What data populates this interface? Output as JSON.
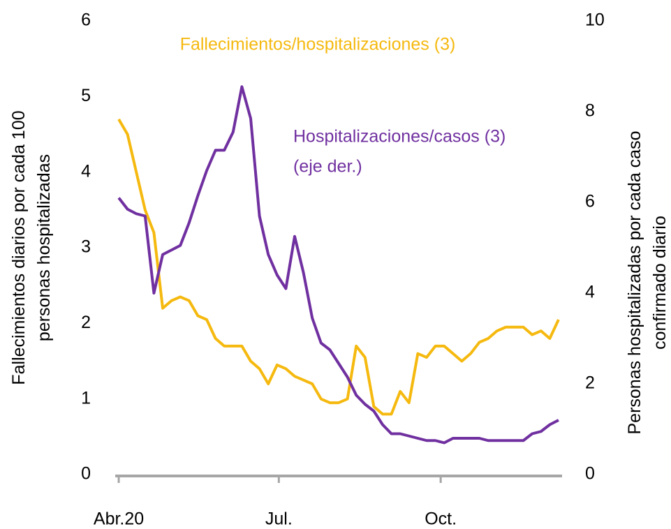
{
  "chart_data": {
    "type": "line",
    "y_label": "Fallecimientos diarios por cada 100 personas hospitalizadas",
    "y2_label": "Personas hospitalizadas por cada caso confirmado diario",
    "annotations": [
      "Fallecimientos/hospitalizaciones (3)",
      "Hospitalizaciones/casos (3)",
      "(eje der.)"
    ],
    "x": [
      0,
      5,
      10,
      15,
      20,
      25,
      30,
      35,
      40,
      45,
      50,
      55,
      60,
      65,
      70,
      75,
      80,
      85,
      90,
      95,
      100,
      105,
      110,
      115,
      120,
      125,
      130,
      135,
      140,
      145,
      150,
      155,
      160,
      165,
      170,
      175,
      180,
      185,
      190,
      195,
      200,
      205,
      210,
      215,
      220,
      225,
      230,
      235,
      240,
      245,
      250
    ],
    "xlim": [
      -2,
      252
    ],
    "xticks": [
      {
        "value": 0,
        "label": "Abr.20"
      },
      {
        "value": 91,
        "label": "Jul."
      },
      {
        "value": 183,
        "label": "Oct."
      }
    ],
    "ylim": [
      0,
      6
    ],
    "yticks": [
      0,
      1,
      2,
      3,
      4,
      5,
      6
    ],
    "y2lim": [
      0,
      10
    ],
    "y2ticks": [
      0,
      2,
      4,
      6,
      8,
      10
    ],
    "series": [
      {
        "name": "Fallecimientos/hospitalizaciones (3)",
        "color": "#f5b90f",
        "axis": "y",
        "values": [
          4.7,
          4.5,
          4.0,
          3.5,
          3.2,
          2.2,
          2.3,
          2.35,
          2.3,
          2.1,
          2.05,
          1.8,
          1.7,
          1.7,
          1.7,
          1.5,
          1.4,
          1.2,
          1.45,
          1.4,
          1.3,
          1.25,
          1.2,
          1.0,
          0.95,
          0.95,
          1.0,
          1.7,
          1.55,
          0.9,
          0.8,
          0.8,
          1.1,
          0.95,
          1.6,
          1.55,
          1.7,
          1.7,
          1.6,
          1.5,
          1.6,
          1.75,
          1.8,
          1.9,
          1.95,
          1.95,
          1.95,
          1.85,
          1.9,
          1.8,
          2.05
        ]
      },
      {
        "name": "Hospitalizaciones/casos (3)",
        "color": "#7030a0",
        "axis": "y2",
        "values": [
          6.1,
          5.85,
          5.75,
          5.7,
          4.0,
          4.85,
          4.95,
          5.05,
          5.55,
          6.15,
          6.7,
          7.15,
          7.15,
          7.55,
          8.55,
          7.85,
          5.7,
          4.85,
          4.4,
          4.1,
          5.25,
          4.45,
          3.45,
          2.9,
          2.75,
          2.45,
          2.15,
          1.75,
          1.55,
          1.4,
          1.1,
          0.9,
          0.9,
          0.85,
          0.8,
          0.75,
          0.75,
          0.7,
          0.8,
          0.8,
          0.8,
          0.8,
          0.75,
          0.75,
          0.75,
          0.75,
          0.75,
          0.9,
          0.95,
          1.1,
          1.2
        ]
      }
    ]
  }
}
